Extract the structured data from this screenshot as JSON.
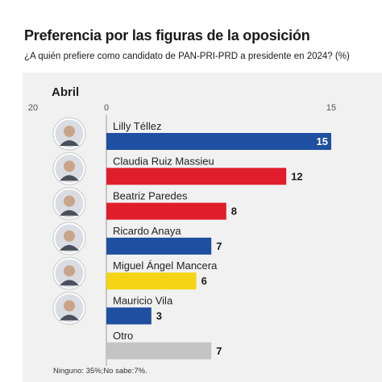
{
  "header": {
    "title": "Preferencia por las figuras de la oposición",
    "subtitle": "¿A quién prefiere como candidato de PAN-PRI-PRD a presidente en 2024? (%)"
  },
  "note": "Ninguno: 35%;No sabe:7%.",
  "chart_data": {
    "type": "bar",
    "orientation": "horizontal",
    "panel_label": "Abril",
    "axis_ticks": [
      "20",
      "0",
      "15"
    ],
    "xlim": [
      0,
      15
    ],
    "grid": false,
    "categories": [
      "Lilly Téllez",
      "Claudia Ruiz Massieu",
      "Beatriz Paredes",
      "Ricardo Anaya",
      "Miguel Ángel Mancera",
      "Mauricio Vila",
      "Otro"
    ],
    "values": [
      15,
      12,
      8,
      7,
      6,
      3,
      7
    ],
    "bar_colors": [
      "#1f4fa0",
      "#e01e2b",
      "#e01e2b",
      "#1f4fa0",
      "#f5d416",
      "#1f4fa0",
      "#c4c4c4"
    ],
    "label_colors": [
      "#ffffff",
      "#1a1a1a",
      "#1a1a1a",
      "#1a1a1a",
      "#1a1a1a",
      "#1a1a1a",
      "#1a1a1a"
    ],
    "avatars": [
      "avatar-lilly-tellez",
      "avatar-claudia-ruiz-massieu",
      "avatar-beatriz-paredes",
      "avatar-ricardo-anaya",
      "avatar-miguel-angel-mancera",
      "avatar-mauricio-vila",
      null
    ]
  }
}
